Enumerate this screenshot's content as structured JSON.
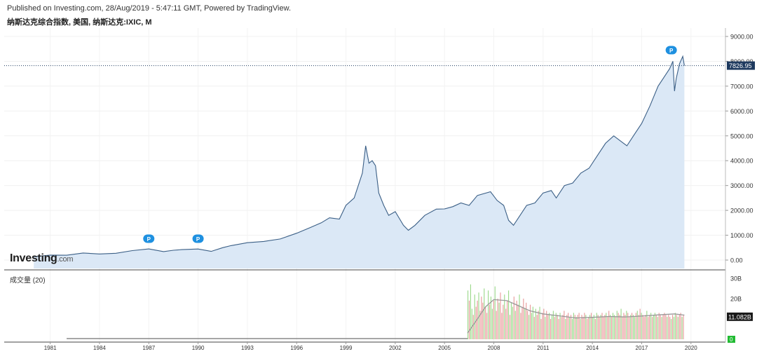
{
  "header": {
    "published": "Published on Investing.com, 28/Aug/2019 - 5:47:11 GMT, Powered by TradingView.",
    "symbol": "纳斯达克综合指数, 美国, 纳斯达克:IXIC, M"
  },
  "logo": {
    "name": "Investing",
    "suffix": ".com"
  },
  "colors": {
    "price_line": "#3b5f86",
    "price_fill": "#dbe8f6",
    "last_label_bg": "#1e3a5f",
    "marker": "#1e90e0",
    "vol_up": "#9bd98a",
    "vol_down": "#e89a9a",
    "vol_ma": "#999999",
    "last_vol_bg": "#1a1a1a",
    "zero_bg": "#22bb33"
  },
  "price_axis": {
    "ticks": [
      "9000.00",
      "8000.00",
      "7000.00",
      "6000.00",
      "5000.00",
      "4000.00",
      "3000.00",
      "2000.00",
      "1000.00",
      "0.00"
    ],
    "last_label": "7826.95"
  },
  "volume_panel": {
    "title": "成交量 (20)",
    "ticks": [
      "30B",
      "20B"
    ],
    "last_label": "11.082B",
    "zero_label": "0"
  },
  "markers": [
    {
      "label": "P",
      "x": 1987.0,
      "y": 0
    },
    {
      "label": "P",
      "x": 1990.0,
      "y": 0
    },
    {
      "label": "P",
      "x": 2018.8,
      "y": 0
    }
  ],
  "chart_data": {
    "type": "area",
    "x_ticks": [
      "1981",
      "1984",
      "1987",
      "1990",
      "1993",
      "1996",
      "1999",
      "2002",
      "2005",
      "2008",
      "2011",
      "2014",
      "2017",
      "2020"
    ],
    "xlim": [
      1978.2,
      2022.1
    ],
    "ylim": [
      0,
      9000
    ],
    "grid": true,
    "last_value": 7826.95,
    "series": [
      {
        "x": [
          1980.0,
          1981.0,
          1982.0,
          1983.0,
          1984.0,
          1985.0,
          1986.0,
          1987.0,
          1987.9,
          1988.5,
          1989.0,
          1990.0,
          1990.8,
          1991.5,
          1992.0,
          1993.0,
          1994.0,
          1995.0,
          1996.0,
          1996.8,
          1997.5,
          1998.0,
          1998.6,
          1999.0,
          1999.5,
          2000.0,
          2000.2,
          2000.4,
          2000.6,
          2000.8,
          2001.0,
          2001.3,
          2001.6,
          2002.0,
          2002.5,
          2002.8,
          2003.2,
          2003.8,
          2004.5,
          2005.0,
          2005.5,
          2006.0,
          2006.5,
          2007.0,
          2007.8,
          2008.2,
          2008.6,
          2008.9,
          2009.2,
          2009.6,
          2010.0,
          2010.5,
          2011.0,
          2011.5,
          2011.8,
          2012.3,
          2012.8,
          2013.3,
          2013.8,
          2014.3,
          2014.8,
          2015.3,
          2015.7,
          2016.1,
          2016.6,
          2017.0,
          2017.5,
          2018.0,
          2018.4,
          2018.7,
          2018.9,
          2019.0,
          2019.1,
          2019.3,
          2019.5,
          2019.6
        ],
        "y": [
          135,
          200,
          195,
          285,
          245,
          275,
          380,
          450,
          340,
          395,
          420,
          445,
          350,
          500,
          580,
          700,
          750,
          850,
          1080,
          1300,
          1500,
          1700,
          1650,
          2200,
          2500,
          3500,
          4600,
          3900,
          4000,
          3800,
          2700,
          2200,
          1800,
          1950,
          1400,
          1200,
          1400,
          1800,
          2050,
          2060,
          2150,
          2300,
          2200,
          2600,
          2750,
          2400,
          2200,
          1600,
          1400,
          1800,
          2200,
          2300,
          2700,
          2800,
          2500,
          3000,
          3100,
          3500,
          3700,
          4200,
          4700,
          5000,
          4800,
          4600,
          5100,
          5500,
          6200,
          7000,
          7400,
          7700,
          8000,
          6800,
          7300,
          7900,
          8200,
          7826.95
        ]
      }
    ]
  },
  "volume_data": {
    "type": "bar",
    "x_start": 2006.4,
    "x_end": 2019.6,
    "values": [
      24,
      19,
      27,
      15,
      12,
      22,
      16,
      19,
      23,
      14,
      21,
      18,
      25,
      16,
      13,
      24,
      17,
      21,
      15,
      19,
      26,
      14,
      20,
      18,
      23,
      13,
      17,
      22,
      15,
      19,
      24,
      12,
      18,
      16,
      21,
      14,
      19,
      17,
      22,
      13,
      16,
      20,
      15,
      18,
      14,
      12,
      17,
      13,
      16,
      11,
      15,
      12,
      14,
      16,
      10,
      13,
      15,
      11,
      14,
      12,
      13,
      10,
      12,
      14,
      11,
      13,
      12,
      10,
      13,
      11,
      12,
      14,
      10,
      12,
      13,
      11,
      12,
      10,
      13,
      12,
      11,
      12,
      13,
      10,
      12,
      11,
      13,
      12,
      10,
      11,
      12,
      13,
      11,
      12,
      10,
      13,
      12,
      11,
      12,
      13,
      11,
      12,
      13,
      11,
      14,
      12,
      11,
      13,
      12,
      11,
      14,
      13,
      12,
      15,
      11,
      13,
      12,
      14,
      13,
      11,
      12,
      13,
      12,
      11,
      13,
      14,
      12,
      15,
      13,
      12,
      11,
      12,
      14,
      11,
      12,
      13,
      11,
      12,
      13,
      12,
      11,
      13,
      12,
      11,
      12,
      13,
      12,
      11,
      12,
      11,
      10,
      12,
      11,
      13,
      12,
      11,
      12,
      13,
      11,
      12
    ],
    "ma": [
      [
        2006.4,
        3
      ],
      [
        2007.0,
        10
      ],
      [
        2007.5,
        16
      ],
      [
        2008.0,
        19.5
      ],
      [
        2008.8,
        19
      ],
      [
        2009.5,
        16.5
      ],
      [
        2010.2,
        14
      ],
      [
        2011.0,
        12.5
      ],
      [
        2012.0,
        11.5
      ],
      [
        2013.0,
        10.5
      ],
      [
        2014.0,
        10.8
      ],
      [
        2015.0,
        11.2
      ],
      [
        2016.0,
        11.0
      ],
      [
        2017.0,
        11.4
      ],
      [
        2018.0,
        12.0
      ],
      [
        2019.0,
        12.5
      ],
      [
        2019.6,
        11.9
      ]
    ]
  }
}
